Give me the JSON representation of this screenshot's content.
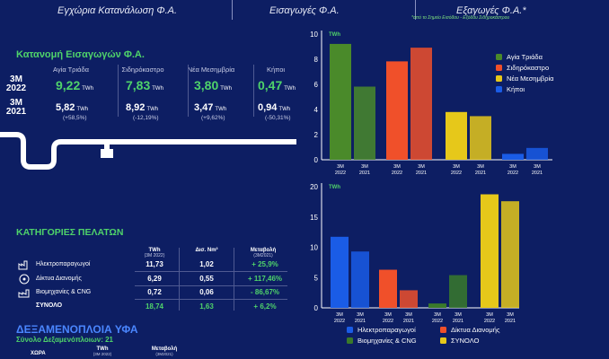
{
  "header": {
    "items": [
      "Εγχώρια Κατανάλωση Φ.Α.",
      "Εισαγωγές Φ.Α.",
      "Εξαγωγές Φ.Α.*"
    ],
    "note": "*από το Σημείο Εισόδου - Εξόδου Σιδηροκάστρου"
  },
  "distribution": {
    "title": "Κατανομή Εισαγωγών Φ.Α.",
    "columns": [
      "Αγία Τριάδα",
      "Σιδηρόκαστρο",
      "Νέα Μεσημβρία",
      "Κήποι"
    ],
    "rows": [
      {
        "period": "3M",
        "year": "2022",
        "values": [
          "9,22",
          "7,83",
          "3,80",
          "0,47"
        ],
        "unit": "TWh"
      },
      {
        "period": "3M",
        "year": "2021",
        "values": [
          "5,82",
          "8,92",
          "3,47",
          "0,94"
        ],
        "changes": [
          "(+58,5%)",
          "(-12,19%)",
          "(+9,62%)",
          "(-50,31%)"
        ],
        "unit": "TWh"
      }
    ]
  },
  "categories": {
    "title": "ΚΑΤΗΓΟΡΙΕΣ ΠΕΛΑΤΩΝ",
    "headers": [
      {
        "main": "TWh",
        "sub": "(3M 2022)"
      },
      {
        "main": "Δισ. Nm³",
        "sub": ""
      },
      {
        "main": "Μεταβολή",
        "sub": "(3M2021)"
      }
    ],
    "rows": [
      {
        "label": "Ηλεκτροπαραγωγοί",
        "twh": "11,73",
        "nm3": "1,02",
        "change": "+ 25,9%"
      },
      {
        "label": "Δίκτυα Διανομής",
        "twh": "6,29",
        "nm3": "0,55",
        "change": "+ 117,46%"
      },
      {
        "label": "Βιομηχανίες & CNG",
        "twh": "0,72",
        "nm3": "0,06",
        "change": "- 86,67%"
      }
    ],
    "total": {
      "label": "ΣΥΝΟΛΟ",
      "twh": "18,74",
      "nm3": "1,63",
      "change": "+ 6,2%"
    }
  },
  "lng": {
    "title": "ΔΕΞΑΜΕΝΟΠΛΟΙΑ ΥΦΑ",
    "subtitle": "Σύνολο Δεξαμενόπλοιων: 21",
    "col_country": "ΧΩΡΑ",
    "col_twh": "TWh",
    "col_twh_sub": "(3M 2022)",
    "col_change": "Μεταβολή",
    "col_change_sub": "(3M2021)"
  },
  "colors": {
    "background": "#0d1e63",
    "accent_green": "#4fd36a",
    "agia_triada": "#4a8a2a",
    "sidirokastro": "#f0502a",
    "nea_mesimvria": "#e6c81a",
    "kipoi": "#1a5ce6",
    "ilektroparagogoi": "#1a5ce6",
    "diktya_dianomis": "#f0502a",
    "viomichanies": "#3a7a2a",
    "synolo": "#e6c81a"
  },
  "chart_data": [
    {
      "type": "bar",
      "title": "",
      "ylabel": "TWh",
      "ylim": [
        0,
        10
      ],
      "yticks": [
        0,
        2,
        4,
        6,
        8,
        10
      ],
      "legend_position": "top-right",
      "groups": [
        {
          "name": "Αγία Τριάδα",
          "color": "#4a8a2a",
          "bars": [
            {
              "label": "3M 2022",
              "value": 9.22
            },
            {
              "label": "3M 2021",
              "value": 5.82
            }
          ]
        },
        {
          "name": "Σιδηρόκαστρο",
          "color": "#f0502a",
          "bars": [
            {
              "label": "3M 2022",
              "value": 7.83
            },
            {
              "label": "3M 2021",
              "value": 8.92
            }
          ]
        },
        {
          "name": "Νέα Μεσημβρία",
          "color": "#e6c81a",
          "bars": [
            {
              "label": "3M 2022",
              "value": 3.8
            },
            {
              "label": "3M 2021",
              "value": 3.47
            }
          ]
        },
        {
          "name": "Κήποι",
          "color": "#1a5ce6",
          "bars": [
            {
              "label": "3M 2022",
              "value": 0.47
            },
            {
              "label": "3M 2021",
              "value": 0.94
            }
          ]
        }
      ]
    },
    {
      "type": "bar",
      "title": "",
      "ylabel": "TWh",
      "ylim": [
        0,
        20
      ],
      "yticks": [
        0,
        5,
        10,
        15,
        20
      ],
      "legend_position": "bottom",
      "groups": [
        {
          "name": "Ηλεκτροπαραγωγοί",
          "color": "#1a5ce6",
          "bars": [
            {
              "label": "3M 2022",
              "value": 11.73
            },
            {
              "label": "3M 2021",
              "value": 9.3
            }
          ]
        },
        {
          "name": "Δίκτυα Διανομής",
          "color": "#f0502a",
          "bars": [
            {
              "label": "3M 2022",
              "value": 6.29
            },
            {
              "label": "3M 2021",
              "value": 2.9
            }
          ]
        },
        {
          "name": "Βιομηχανίες & CNG",
          "color": "#3a7a2a",
          "bars": [
            {
              "label": "3M 2022",
              "value": 0.72
            },
            {
              "label": "3M 2021",
              "value": 5.4
            }
          ]
        },
        {
          "name": "ΣΥΝΟΛΟ",
          "color": "#e6c81a",
          "bars": [
            {
              "label": "3M 2022",
              "value": 18.74
            },
            {
              "label": "3M 2021",
              "value": 17.6
            }
          ]
        }
      ]
    }
  ]
}
